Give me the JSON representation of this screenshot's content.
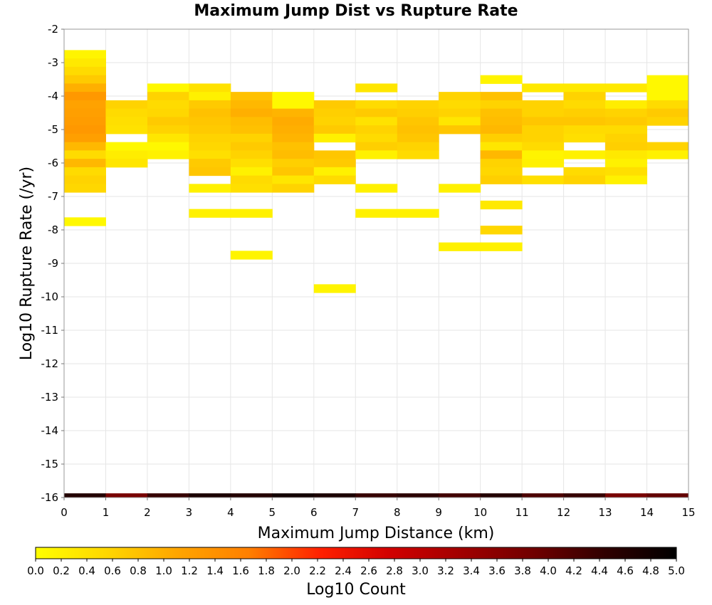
{
  "chart_data": {
    "type": "heatmap",
    "title": "Maximum Jump Dist vs Rupture Rate",
    "xlabel": "Maximum Jump Distance (km)",
    "ylabel": "Log10 Rupture Rate (/yr)",
    "xlim": [
      0,
      15
    ],
    "ylim": [
      -16,
      -2
    ],
    "x_ticks": [
      "0",
      "1",
      "2",
      "3",
      "4",
      "5",
      "6",
      "7",
      "8",
      "9",
      "10",
      "11",
      "12",
      "13",
      "14",
      "15"
    ],
    "y_ticks": [
      "-2",
      "-3",
      "-4",
      "-5",
      "-6",
      "-7",
      "-8",
      "-9",
      "-10",
      "-11",
      "-12",
      "-13",
      "-14",
      "-15",
      "-16"
    ],
    "x_bin_width": 1,
    "y_bin_height": 0.25,
    "grid": true,
    "colorbar": {
      "label": "Log10 Count",
      "min": 0,
      "max": 5,
      "ticks": [
        "0.0",
        "0.2",
        "0.4",
        "0.6",
        "0.8",
        "1.0",
        "1.2",
        "1.4",
        "1.6",
        "1.8",
        "2.0",
        "2.2",
        "2.4",
        "2.6",
        "2.8",
        "3.0",
        "3.2",
        "3.4",
        "3.6",
        "3.8",
        "4.0",
        "4.2",
        "4.4",
        "4.6",
        "4.8",
        "5.0"
      ],
      "stops": [
        "#ffff00",
        "#ffd700",
        "#ffa500",
        "#ff7f00",
        "#ff2000",
        "#d00000",
        "#a00000",
        "#700000",
        "#300000",
        "#000000"
      ]
    },
    "cells": [
      {
        "x": 0,
        "y": -2.75,
        "v": 0.15
      },
      {
        "x": 0,
        "y": -3.0,
        "v": 0.3
      },
      {
        "x": 0,
        "y": -3.25,
        "v": 0.5
      },
      {
        "x": 0,
        "y": -3.5,
        "v": 0.7
      },
      {
        "x": 0,
        "y": -3.75,
        "v": 1.0
      },
      {
        "x": 0,
        "y": -4.0,
        "v": 1.3
      },
      {
        "x": 0,
        "y": -4.25,
        "v": 1.15
      },
      {
        "x": 0,
        "y": -4.5,
        "v": 1.2
      },
      {
        "x": 0,
        "y": -4.75,
        "v": 1.25
      },
      {
        "x": 0,
        "y": -5.0,
        "v": 1.3
      },
      {
        "x": 0,
        "y": -5.25,
        "v": 1.2
      },
      {
        "x": 0,
        "y": -5.5,
        "v": 0.9
      },
      {
        "x": 0,
        "y": -5.75,
        "v": 0.5
      },
      {
        "x": 0,
        "y": -6.0,
        "v": 0.9
      },
      {
        "x": 0,
        "y": -6.25,
        "v": 0.5
      },
      {
        "x": 0,
        "y": -6.5,
        "v": 0.6
      },
      {
        "x": 0,
        "y": -6.75,
        "v": 0.55
      },
      {
        "x": 0,
        "y": -7.75,
        "v": 0.1
      },
      {
        "x": 1,
        "y": -4.25,
        "v": 0.6
      },
      {
        "x": 1,
        "y": -4.5,
        "v": 0.5
      },
      {
        "x": 1,
        "y": -4.75,
        "v": 0.45
      },
      {
        "x": 1,
        "y": -5.0,
        "v": 0.4
      },
      {
        "x": 1,
        "y": -5.5,
        "v": 0.1
      },
      {
        "x": 1,
        "y": -5.75,
        "v": 0.25
      },
      {
        "x": 1,
        "y": -6.0,
        "v": 0.35
      },
      {
        "x": 2,
        "y": -3.75,
        "v": 0.1
      },
      {
        "x": 2,
        "y": -4.0,
        "v": 0.6
      },
      {
        "x": 2,
        "y": -4.25,
        "v": 0.5
      },
      {
        "x": 2,
        "y": -4.5,
        "v": 0.55
      },
      {
        "x": 2,
        "y": -4.75,
        "v": 0.7
      },
      {
        "x": 2,
        "y": -5.0,
        "v": 0.6
      },
      {
        "x": 2,
        "y": -5.25,
        "v": 0.35
      },
      {
        "x": 2,
        "y": -5.5,
        "v": 0.1
      },
      {
        "x": 2,
        "y": -5.75,
        "v": 0.2
      },
      {
        "x": 3,
        "y": -3.75,
        "v": 0.4
      },
      {
        "x": 3,
        "y": -4.0,
        "v": 0.2
      },
      {
        "x": 3,
        "y": -4.25,
        "v": 0.7
      },
      {
        "x": 3,
        "y": -4.5,
        "v": 0.8
      },
      {
        "x": 3,
        "y": -4.75,
        "v": 0.75
      },
      {
        "x": 3,
        "y": -5.0,
        "v": 0.7
      },
      {
        "x": 3,
        "y": -5.25,
        "v": 0.6
      },
      {
        "x": 3,
        "y": -5.5,
        "v": 0.55
      },
      {
        "x": 3,
        "y": -5.75,
        "v": 0.45
      },
      {
        "x": 3,
        "y": -6.0,
        "v": 0.7
      },
      {
        "x": 3,
        "y": -6.25,
        "v": 0.75
      },
      {
        "x": 3,
        "y": -6.75,
        "v": 0.2
      },
      {
        "x": 3,
        "y": -7.5,
        "v": 0.2
      },
      {
        "x": 4,
        "y": -4.0,
        "v": 0.8
      },
      {
        "x": 4,
        "y": -4.25,
        "v": 0.9
      },
      {
        "x": 4,
        "y": -4.5,
        "v": 1.0
      },
      {
        "x": 4,
        "y": -4.75,
        "v": 0.85
      },
      {
        "x": 4,
        "y": -5.0,
        "v": 0.8
      },
      {
        "x": 4,
        "y": -5.25,
        "v": 0.6
      },
      {
        "x": 4,
        "y": -5.5,
        "v": 0.7
      },
      {
        "x": 4,
        "y": -5.75,
        "v": 0.6
      },
      {
        "x": 4,
        "y": -6.0,
        "v": 0.45
      },
      {
        "x": 4,
        "y": -6.25,
        "v": 0.2
      },
      {
        "x": 4,
        "y": -6.5,
        "v": 0.5
      },
      {
        "x": 4,
        "y": -6.75,
        "v": 0.45
      },
      {
        "x": 4,
        "y": -7.5,
        "v": 0.2
      },
      {
        "x": 4,
        "y": -8.75,
        "v": 0.15
      },
      {
        "x": 5,
        "y": -4.0,
        "v": 0.1
      },
      {
        "x": 5,
        "y": -4.25,
        "v": 0.1
      },
      {
        "x": 5,
        "y": -4.5,
        "v": 0.95
      },
      {
        "x": 5,
        "y": -4.75,
        "v": 1.05
      },
      {
        "x": 5,
        "y": -5.0,
        "v": 1.0
      },
      {
        "x": 5,
        "y": -5.25,
        "v": 0.95
      },
      {
        "x": 5,
        "y": -5.5,
        "v": 0.8
      },
      {
        "x": 5,
        "y": -5.75,
        "v": 0.85
      },
      {
        "x": 5,
        "y": -6.0,
        "v": 0.65
      },
      {
        "x": 5,
        "y": -6.25,
        "v": 0.75
      },
      {
        "x": 5,
        "y": -6.5,
        "v": 0.35
      },
      {
        "x": 5,
        "y": -6.75,
        "v": 0.6
      },
      {
        "x": 6,
        "y": -4.25,
        "v": 0.7
      },
      {
        "x": 6,
        "y": -4.5,
        "v": 0.65
      },
      {
        "x": 6,
        "y": -4.75,
        "v": 0.6
      },
      {
        "x": 6,
        "y": -5.0,
        "v": 0.7
      },
      {
        "x": 6,
        "y": -5.25,
        "v": 0.2
      },
      {
        "x": 6,
        "y": -5.75,
        "v": 0.75
      },
      {
        "x": 6,
        "y": -6.0,
        "v": 0.7
      },
      {
        "x": 6,
        "y": -6.25,
        "v": 0.2
      },
      {
        "x": 6,
        "y": -6.5,
        "v": 0.5
      },
      {
        "x": 6,
        "y": -9.75,
        "v": 0.15
      },
      {
        "x": 7,
        "y": -3.75,
        "v": 0.35
      },
      {
        "x": 7,
        "y": -4.25,
        "v": 0.5
      },
      {
        "x": 7,
        "y": -4.5,
        "v": 0.7
      },
      {
        "x": 7,
        "y": -4.75,
        "v": 0.4
      },
      {
        "x": 7,
        "y": -5.0,
        "v": 0.6
      },
      {
        "x": 7,
        "y": -5.25,
        "v": 0.5
      },
      {
        "x": 7,
        "y": -5.5,
        "v": 0.65
      },
      {
        "x": 7,
        "y": -5.75,
        "v": 0.2
      },
      {
        "x": 7,
        "y": -6.75,
        "v": 0.2
      },
      {
        "x": 7,
        "y": -7.5,
        "v": 0.2
      },
      {
        "x": 8,
        "y": -4.25,
        "v": 0.6
      },
      {
        "x": 8,
        "y": -4.5,
        "v": 0.65
      },
      {
        "x": 8,
        "y": -4.75,
        "v": 0.75
      },
      {
        "x": 8,
        "y": -5.0,
        "v": 0.8
      },
      {
        "x": 8,
        "y": -5.25,
        "v": 0.75
      },
      {
        "x": 8,
        "y": -5.5,
        "v": 0.6
      },
      {
        "x": 8,
        "y": -5.75,
        "v": 0.5
      },
      {
        "x": 8,
        "y": -7.5,
        "v": 0.2
      },
      {
        "x": 9,
        "y": -4.0,
        "v": 0.6
      },
      {
        "x": 9,
        "y": -4.25,
        "v": 0.5
      },
      {
        "x": 9,
        "y": -4.5,
        "v": 0.6
      },
      {
        "x": 9,
        "y": -4.75,
        "v": 0.35
      },
      {
        "x": 9,
        "y": -5.0,
        "v": 0.75
      },
      {
        "x": 9,
        "y": -6.75,
        "v": 0.2
      },
      {
        "x": 9,
        "y": -8.5,
        "v": 0.2
      },
      {
        "x": 10,
        "y": -3.5,
        "v": 0.15
      },
      {
        "x": 10,
        "y": -4.0,
        "v": 0.8
      },
      {
        "x": 10,
        "y": -4.25,
        "v": 0.6
      },
      {
        "x": 10,
        "y": -4.5,
        "v": 0.8
      },
      {
        "x": 10,
        "y": -4.75,
        "v": 0.85
      },
      {
        "x": 10,
        "y": -5.0,
        "v": 0.9
      },
      {
        "x": 10,
        "y": -5.25,
        "v": 0.65
      },
      {
        "x": 10,
        "y": -5.5,
        "v": 0.35
      },
      {
        "x": 10,
        "y": -5.75,
        "v": 0.9
      },
      {
        "x": 10,
        "y": -6.0,
        "v": 0.6
      },
      {
        "x": 10,
        "y": -6.25,
        "v": 0.55
      },
      {
        "x": 10,
        "y": -6.5,
        "v": 0.65
      },
      {
        "x": 10,
        "y": -7.25,
        "v": 0.3
      },
      {
        "x": 10,
        "y": -8.0,
        "v": 0.55
      },
      {
        "x": 10,
        "y": -8.5,
        "v": 0.2
      },
      {
        "x": 11,
        "y": -3.75,
        "v": 0.3
      },
      {
        "x": 11,
        "y": -4.25,
        "v": 0.6
      },
      {
        "x": 11,
        "y": -4.5,
        "v": 0.6
      },
      {
        "x": 11,
        "y": -4.75,
        "v": 0.75
      },
      {
        "x": 11,
        "y": -5.0,
        "v": 0.6
      },
      {
        "x": 11,
        "y": -5.25,
        "v": 0.6
      },
      {
        "x": 11,
        "y": -5.5,
        "v": 0.5
      },
      {
        "x": 11,
        "y": -5.75,
        "v": 0.15
      },
      {
        "x": 11,
        "y": -6.0,
        "v": 0.2
      },
      {
        "x": 11,
        "y": -6.5,
        "v": 0.45
      },
      {
        "x": 12,
        "y": -3.75,
        "v": 0.3
      },
      {
        "x": 12,
        "y": -4.0,
        "v": 0.6
      },
      {
        "x": 12,
        "y": -4.25,
        "v": 0.5
      },
      {
        "x": 12,
        "y": -4.5,
        "v": 0.65
      },
      {
        "x": 12,
        "y": -4.75,
        "v": 0.75
      },
      {
        "x": 12,
        "y": -5.0,
        "v": 0.5
      },
      {
        "x": 12,
        "y": -5.25,
        "v": 0.45
      },
      {
        "x": 12,
        "y": -5.75,
        "v": 0.2
      },
      {
        "x": 12,
        "y": -6.25,
        "v": 0.5
      },
      {
        "x": 12,
        "y": -6.5,
        "v": 0.6
      },
      {
        "x": 13,
        "y": -3.75,
        "v": 0.3
      },
      {
        "x": 13,
        "y": -4.25,
        "v": 0.25
      },
      {
        "x": 13,
        "y": -4.5,
        "v": 0.6
      },
      {
        "x": 13,
        "y": -4.75,
        "v": 0.7
      },
      {
        "x": 13,
        "y": -5.0,
        "v": 0.5
      },
      {
        "x": 13,
        "y": -5.25,
        "v": 0.6
      },
      {
        "x": 13,
        "y": -5.5,
        "v": 0.65
      },
      {
        "x": 13,
        "y": -5.75,
        "v": 0.3
      },
      {
        "x": 13,
        "y": -6.0,
        "v": 0.2
      },
      {
        "x": 13,
        "y": -6.25,
        "v": 0.45
      },
      {
        "x": 13,
        "y": -6.5,
        "v": 0.2
      },
      {
        "x": 14,
        "y": -3.5,
        "v": 0.1
      },
      {
        "x": 14,
        "y": -3.75,
        "v": 0.1
      },
      {
        "x": 14,
        "y": -4.0,
        "v": 0.1
      },
      {
        "x": 14,
        "y": -4.25,
        "v": 0.5
      },
      {
        "x": 14,
        "y": -4.5,
        "v": 0.7
      },
      {
        "x": 14,
        "y": -4.75,
        "v": 0.6
      },
      {
        "x": 14,
        "y": -5.5,
        "v": 0.6
      },
      {
        "x": 14,
        "y": -5.75,
        "v": 0.2
      }
    ],
    "bottom_row": {
      "y": -16,
      "values": [
        4.6,
        3.8,
        4.4,
        4.7,
        4.6,
        4.8,
        4.7,
        4.4,
        4.5,
        4.3,
        4.6,
        4.2,
        4.4,
        3.8,
        4.0
      ]
    }
  }
}
